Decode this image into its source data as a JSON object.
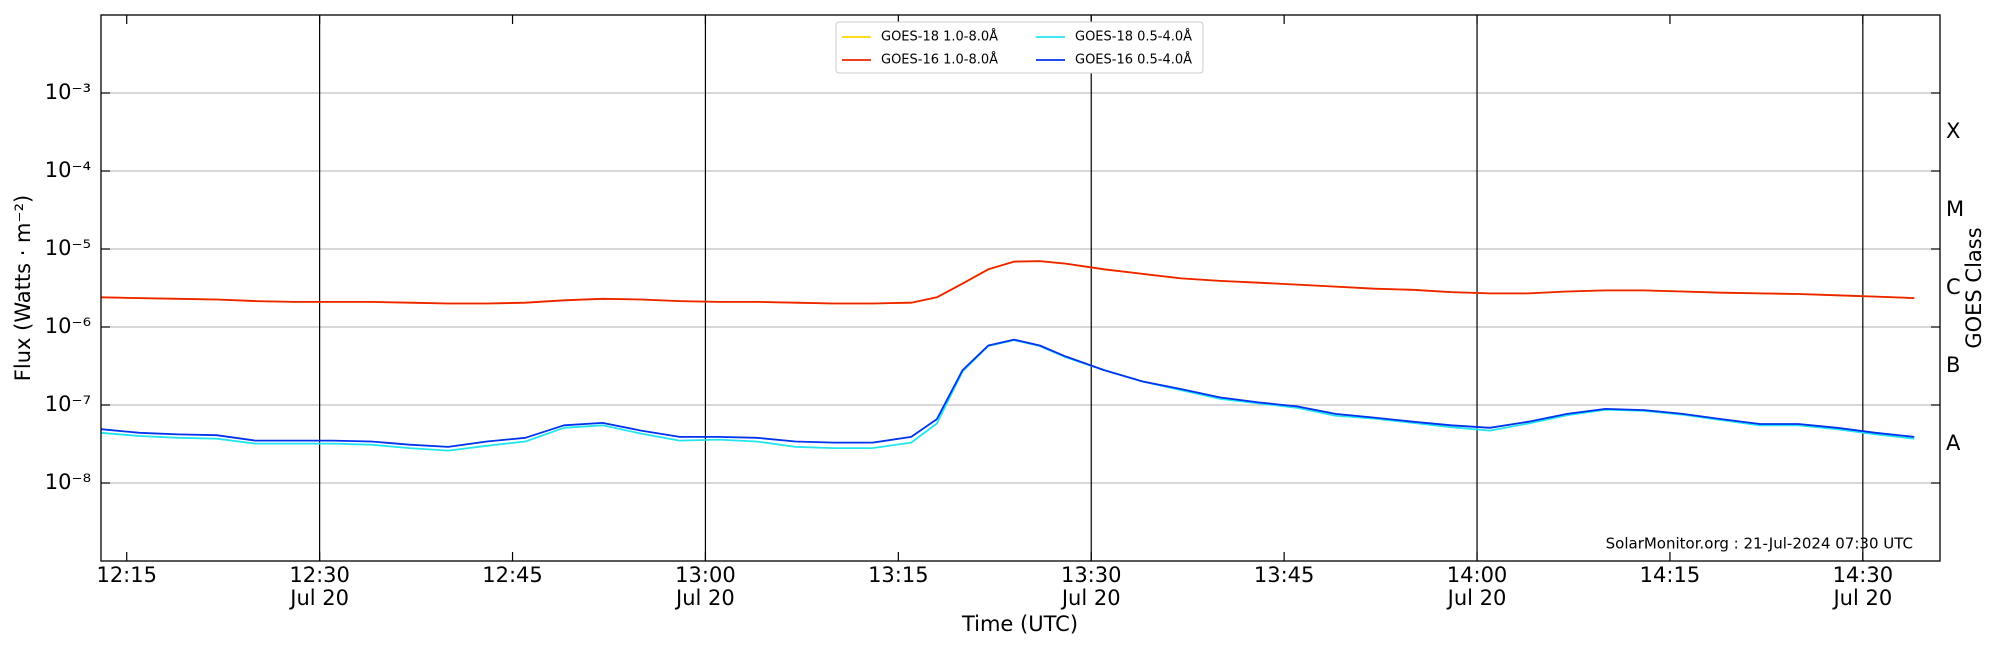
{
  "chart_data": {
    "type": "line",
    "x_label": "Time (UTC)",
    "y_label": "Flux (Watts · m⁻²)",
    "y2_label": "GOES Class",
    "annotation": "SolarMonitor.org : 21-Jul-2024 07:30 UTC",
    "log_y": true,
    "grid": true,
    "legend": "top-center",
    "xlim": [
      "12:13",
      "14:36"
    ],
    "xticks": [
      {
        "value": "12:15",
        "label": [
          "12:15"
        ]
      },
      {
        "value": "12:30",
        "label": [
          "12:30",
          "Jul 20"
        ]
      },
      {
        "value": "12:45",
        "label": [
          "12:45"
        ]
      },
      {
        "value": "13:00",
        "label": [
          "13:00",
          "Jul 20"
        ]
      },
      {
        "value": "13:15",
        "label": [
          "13:15"
        ]
      },
      {
        "value": "13:30",
        "label": [
          "13:30",
          "Jul 20"
        ]
      },
      {
        "value": "13:45",
        "label": [
          "13:45"
        ]
      },
      {
        "value": "14:00",
        "label": [
          "14:00",
          "Jul 20"
        ]
      },
      {
        "value": "14:15",
        "label": [
          "14:15"
        ]
      },
      {
        "value": "14:30",
        "label": [
          "14:30",
          "Jul 20"
        ]
      }
    ],
    "ylim": [
      1e-09,
      0.01
    ],
    "yticks": [
      {
        "value": 1e-08,
        "label": "10⁻⁸"
      },
      {
        "value": 1e-07,
        "label": "10⁻⁷"
      },
      {
        "value": 1e-06,
        "label": "10⁻⁶"
      },
      {
        "value": 1e-05,
        "label": "10⁻⁵"
      },
      {
        "value": 0.0001,
        "label": "10⁻⁴"
      },
      {
        "value": 0.001,
        "label": "10⁻³"
      }
    ],
    "y2lim": [
      1e-09,
      0.01
    ],
    "y2ticks": [
      {
        "value": 3.16e-08,
        "label": "A"
      },
      {
        "value": 3.16e-07,
        "label": "B"
      },
      {
        "value": 3.16e-06,
        "label": "C"
      },
      {
        "value": 3.16e-05,
        "label": "M"
      },
      {
        "value": 0.000316,
        "label": "X"
      }
    ],
    "x": [
      "12:13",
      "12:16",
      "12:19",
      "12:22",
      "12:25",
      "12:28",
      "12:31",
      "12:34",
      "12:37",
      "12:40",
      "12:43",
      "12:46",
      "12:49",
      "12:52",
      "12:55",
      "12:58",
      "13:01",
      "13:04",
      "13:07",
      "13:10",
      "13:13",
      "13:16",
      "13:18",
      "13:20",
      "13:22",
      "13:24",
      "13:26",
      "13:28",
      "13:31",
      "13:34",
      "13:37",
      "13:40",
      "13:43",
      "13:46",
      "13:49",
      "13:52",
      "13:55",
      "13:58",
      "14:01",
      "14:04",
      "14:07",
      "14:10",
      "14:13",
      "14:16",
      "14:19",
      "14:22",
      "14:25",
      "14:28",
      "14:31",
      "14:34"
    ],
    "series": [
      {
        "name": "GOES-18 1.0-8.0Å",
        "color": "#ffd700",
        "values": [
          2.4e-06,
          2.35e-06,
          2.3e-06,
          2.25e-06,
          2.15e-06,
          2.1e-06,
          2.1e-06,
          2.1e-06,
          2.05e-06,
          2e-06,
          2e-06,
          2.05e-06,
          2.2e-06,
          2.3e-06,
          2.25e-06,
          2.15e-06,
          2.1e-06,
          2.1e-06,
          2.05e-06,
          2e-06,
          2e-06,
          2.05e-06,
          2.4e-06,
          3.6e-06,
          5.5e-06,
          6.9e-06,
          7e-06,
          6.5e-06,
          5.5e-06,
          4.8e-06,
          4.2e-06,
          3.9e-06,
          3.7e-06,
          3.5e-06,
          3.3e-06,
          3.1e-06,
          3e-06,
          2.8e-06,
          2.7e-06,
          2.7e-06,
          2.85e-06,
          2.95e-06,
          2.95e-06,
          2.85e-06,
          2.75e-06,
          2.7e-06,
          2.65e-06,
          2.55e-06,
          2.45e-06,
          2.35e-06
        ]
      },
      {
        "name": "GOES-16 1.0-8.0Å",
        "color": "#ee2200",
        "values": [
          2.4e-06,
          2.35e-06,
          2.3e-06,
          2.25e-06,
          2.15e-06,
          2.1e-06,
          2.1e-06,
          2.1e-06,
          2.05e-06,
          2e-06,
          2e-06,
          2.05e-06,
          2.2e-06,
          2.3e-06,
          2.25e-06,
          2.15e-06,
          2.1e-06,
          2.1e-06,
          2.05e-06,
          2e-06,
          2e-06,
          2.05e-06,
          2.4e-06,
          3.6e-06,
          5.5e-06,
          6.9e-06,
          7e-06,
          6.5e-06,
          5.5e-06,
          4.8e-06,
          4.2e-06,
          3.9e-06,
          3.7e-06,
          3.5e-06,
          3.3e-06,
          3.1e-06,
          3e-06,
          2.8e-06,
          2.7e-06,
          2.7e-06,
          2.85e-06,
          2.95e-06,
          2.95e-06,
          2.85e-06,
          2.75e-06,
          2.7e-06,
          2.65e-06,
          2.55e-06,
          2.45e-06,
          2.35e-06
        ]
      },
      {
        "name": "GOES-18 0.5-4.0Å",
        "color": "#22e5ee",
        "values": [
          4.4e-08,
          4e-08,
          3.8e-08,
          3.7e-08,
          3.2e-08,
          3.2e-08,
          3.2e-08,
          3.1e-08,
          2.8e-08,
          2.6e-08,
          3e-08,
          3.4e-08,
          5.1e-08,
          5.5e-08,
          4.3e-08,
          3.5e-08,
          3.6e-08,
          3.4e-08,
          2.9e-08,
          2.8e-08,
          2.8e-08,
          3.3e-08,
          5.8e-08,
          2.7e-07,
          5.7e-07,
          6.8e-07,
          5.7e-07,
          4.1e-07,
          2.8e-07,
          2e-07,
          1.55e-07,
          1.2e-07,
          1.05e-07,
          9.2e-08,
          7.3e-08,
          6.7e-08,
          5.9e-08,
          5.2e-08,
          4.7e-08,
          5.8e-08,
          7.4e-08,
          8.7e-08,
          8.4e-08,
          7.5e-08,
          6.4e-08,
          5.5e-08,
          5.5e-08,
          4.9e-08,
          4.2e-08,
          3.7e-08
        ]
      },
      {
        "name": "GOES-16 0.5-4.0Å",
        "color": "#0033ee",
        "values": [
          4.9e-08,
          4.4e-08,
          4.2e-08,
          4.1e-08,
          3.5e-08,
          3.5e-08,
          3.5e-08,
          3.4e-08,
          3.1e-08,
          2.9e-08,
          3.4e-08,
          3.8e-08,
          5.5e-08,
          5.9e-08,
          4.7e-08,
          3.9e-08,
          3.9e-08,
          3.8e-08,
          3.4e-08,
          3.3e-08,
          3.3e-08,
          3.9e-08,
          6.6e-08,
          2.8e-07,
          5.8e-07,
          6.9e-07,
          5.8e-07,
          4.2e-07,
          2.8e-07,
          2e-07,
          1.6e-07,
          1.25e-07,
          1.08e-07,
          9.6e-08,
          7.7e-08,
          6.9e-08,
          6.1e-08,
          5.5e-08,
          5.1e-08,
          6.1e-08,
          7.7e-08,
          8.9e-08,
          8.6e-08,
          7.7e-08,
          6.6e-08,
          5.7e-08,
          5.7e-08,
          5.1e-08,
          4.4e-08,
          3.9e-08
        ]
      }
    ]
  }
}
